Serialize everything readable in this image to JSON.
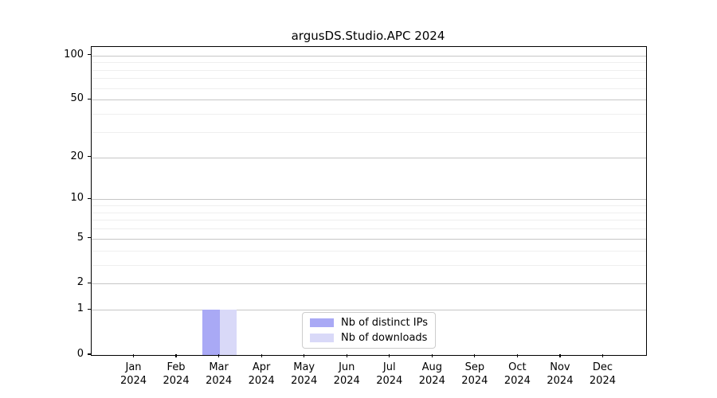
{
  "chart_data": {
    "type": "bar",
    "title": "argusDS.Studio.APC 2024",
    "categories": [
      "Jan 2024",
      "Feb 2024",
      "Mar 2024",
      "Apr 2024",
      "May 2024",
      "Jun 2024",
      "Jul 2024",
      "Aug 2024",
      "Sep 2024",
      "Oct 2024",
      "Nov 2024",
      "Dec 2024"
    ],
    "series": [
      {
        "name": "Nb of distinct IPs",
        "color": "#a9a9f5",
        "values": [
          0,
          0,
          1,
          0,
          0,
          0,
          0,
          0,
          0,
          0,
          0,
          0
        ]
      },
      {
        "name": "Nb of downloads",
        "color": "#d9d9f8",
        "values": [
          0,
          0,
          1,
          0,
          0,
          0,
          0,
          0,
          0,
          0,
          0,
          0
        ]
      }
    ],
    "yscale": "log1p",
    "ylim": [
      0,
      114
    ],
    "yticks": [
      0,
      1,
      2,
      5,
      10,
      20,
      50,
      100
    ],
    "yticks_minor": [
      3,
      4,
      6,
      7,
      8,
      9,
      30,
      40,
      60,
      70,
      80,
      90
    ],
    "xlim": [
      -1,
      12
    ],
    "bar_width_units": 0.4,
    "grid": "horizontal",
    "legend_position": "lower center",
    "colors": {
      "grid_major": "#c6c6c6",
      "grid_minor": "#efefef",
      "axis": "#000000",
      "text": "#000000",
      "background": "#ffffff"
    }
  }
}
